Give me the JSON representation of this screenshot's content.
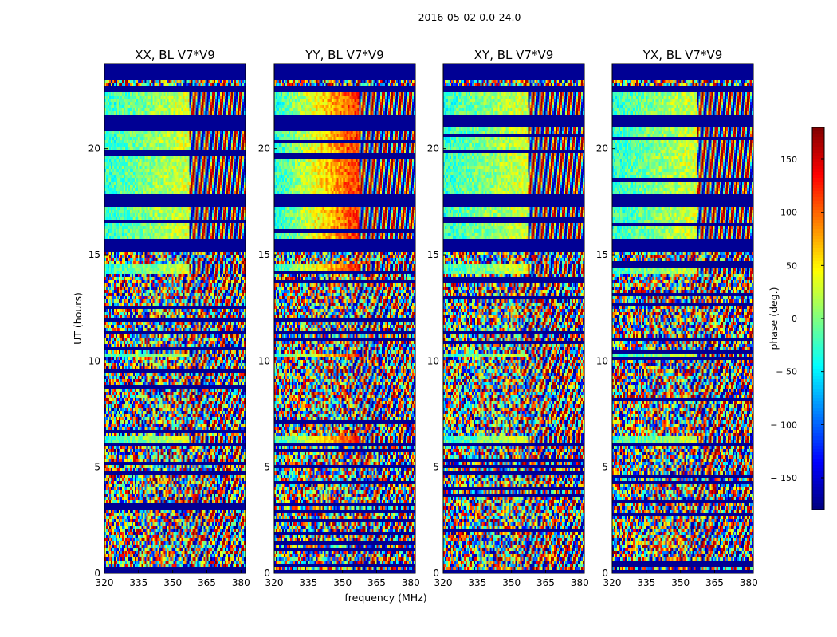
{
  "chart_data": {
    "type": "heatmap",
    "suptitle": "2016-05-02 0.0-24.0",
    "xlabel": "frequency (MHz)",
    "ylabel": "UT (hours)",
    "xlim": [
      320,
      382
    ],
    "ylim": [
      0,
      24
    ],
    "xticks": [
      320,
      335,
      350,
      365,
      380
    ],
    "yticks": [
      0,
      5,
      10,
      15,
      20
    ],
    "panels": [
      {
        "title": "XX, BL V7*V9",
        "variant": 0
      },
      {
        "title": "YY, BL V7*V9",
        "variant": 1
      },
      {
        "title": "XY, BL V7*V9",
        "variant": 2
      },
      {
        "title": "YX, BL V7*V9",
        "variant": 3
      }
    ],
    "flagged_hours": [
      [
        23.3,
        24.0
      ],
      [
        22.7,
        22.9
      ],
      [
        21.0,
        21.6
      ],
      [
        17.2,
        17.9
      ],
      [
        15.2,
        15.7
      ],
      [
        6.0,
        6.2
      ]
    ],
    "coherent_hours": [
      [
        14.1,
        14.6
      ],
      [
        15.8,
        23.0
      ],
      [
        6.2,
        6.5
      ],
      [
        10.2,
        10.4
      ]
    ],
    "colorbar": {
      "label": "phase (deg.)",
      "range": [
        -180,
        180
      ],
      "ticks": [
        150,
        100,
        50,
        0,
        -50,
        -100,
        -150
      ],
      "tick_labels": [
        "150",
        "100",
        "50",
        "0",
        "− 50",
        "− 100",
        "− 150"
      ],
      "colormap": "jet"
    }
  }
}
